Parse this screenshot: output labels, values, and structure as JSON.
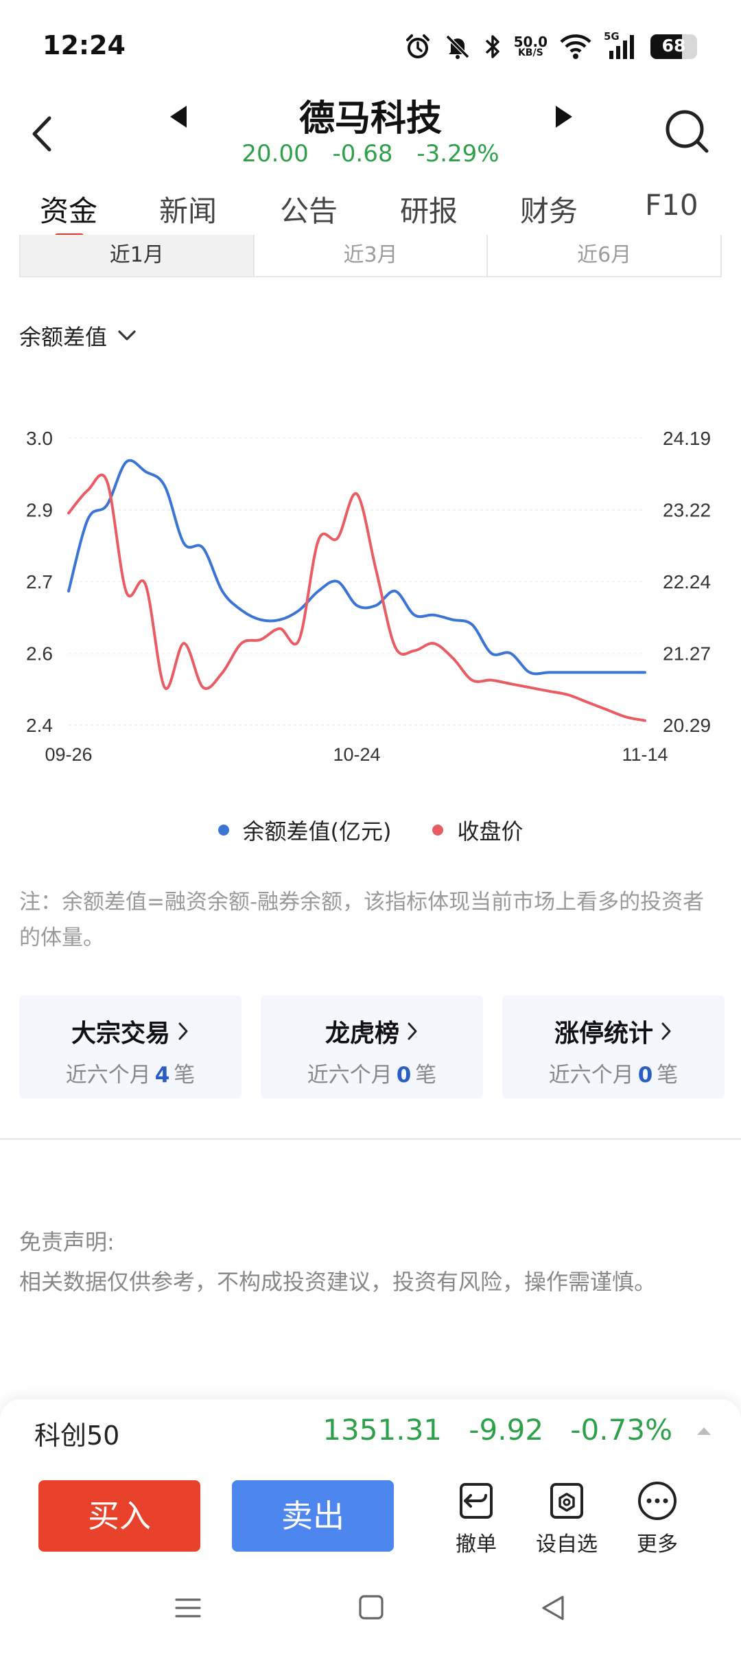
{
  "status_bar": {
    "time": "12:24",
    "net_speed_value": "50.0",
    "net_speed_unit": "KB/S",
    "network_type": "5G",
    "battery": "68",
    "icons": [
      "alarm-icon",
      "mute-icon",
      "bluetooth-icon",
      "wifi-icon",
      "signal-icon",
      "battery-icon"
    ]
  },
  "header": {
    "stock_name": "德马科技",
    "price": "20.00",
    "change": "-0.68",
    "change_pct": "-3.29%",
    "quote_color": "#2ea049"
  },
  "tabs": [
    {
      "label": "资金",
      "active": true
    },
    {
      "label": "新闻",
      "active": false
    },
    {
      "label": "公告",
      "active": false
    },
    {
      "label": "研报",
      "active": false
    },
    {
      "label": "财务",
      "active": false
    },
    {
      "label": "F10",
      "active": false
    }
  ],
  "period": [
    {
      "label": "近1月",
      "active": true
    },
    {
      "label": "近3月",
      "active": false
    },
    {
      "label": "近6月",
      "active": false
    }
  ],
  "metric_dropdown": {
    "selected": "余额差值"
  },
  "chart_data": {
    "type": "line",
    "x": [
      "09-26",
      "09-27",
      "09-30",
      "10-08",
      "10-09",
      "10-10",
      "10-11",
      "10-14",
      "10-15",
      "10-16",
      "10-17",
      "10-18",
      "10-21",
      "10-22",
      "10-23",
      "10-24",
      "10-25",
      "10-28",
      "10-29",
      "10-30",
      "10-31",
      "11-01",
      "11-04",
      "11-05",
      "11-06",
      "11-07",
      "11-08",
      "11-11",
      "11-12",
      "11-13",
      "11-14"
    ],
    "x_tick_labels": [
      "09-26",
      "10-24",
      "11-14"
    ],
    "left_axis": {
      "ticks": [
        "3.0",
        "2.9",
        "2.7",
        "2.6",
        "2.4"
      ],
      "ylim": [
        2.4,
        3.0
      ]
    },
    "right_axis": {
      "ticks": [
        "24.19",
        "23.22",
        "22.24",
        "21.27",
        "20.29"
      ],
      "ylim": [
        20.29,
        24.19
      ]
    },
    "series": [
      {
        "name": "余额差值(亿元)",
        "axis": "left",
        "color": "#3c74d6",
        "values": [
          2.68,
          2.83,
          2.86,
          2.95,
          2.93,
          2.9,
          2.78,
          2.77,
          2.68,
          2.64,
          2.62,
          2.62,
          2.64,
          2.68,
          2.7,
          2.65,
          2.65,
          2.68,
          2.63,
          2.63,
          2.62,
          2.61,
          2.55,
          2.55,
          2.51,
          2.51,
          2.51,
          2.51,
          2.51,
          2.51,
          2.51
        ]
      },
      {
        "name": "收盘价",
        "axis": "right",
        "color": "#e85d63",
        "values": [
          23.17,
          23.48,
          23.6,
          22.1,
          22.2,
          20.8,
          21.4,
          20.8,
          21.0,
          21.4,
          21.45,
          21.6,
          21.45,
          22.8,
          22.83,
          23.43,
          22.4,
          21.35,
          21.3,
          21.4,
          21.2,
          20.9,
          20.9,
          20.85,
          20.8,
          20.75,
          20.7,
          20.6,
          20.5,
          20.4,
          20.35
        ]
      }
    ],
    "legend": [
      "余额差值(亿元)",
      "收盘价"
    ],
    "legend_placement": "bottom-center",
    "grid": true
  },
  "note": "注：余额差值=融资余额-融券余额，该指标体现当前市场上看多的投资者的体量。",
  "cards": [
    {
      "title": "大宗交易",
      "prefix": "近六个月",
      "count": "4",
      "suffix": "笔"
    },
    {
      "title": "龙虎榜",
      "prefix": "近六个月",
      "count": "0",
      "suffix": "笔"
    },
    {
      "title": "涨停统计",
      "prefix": "近六个月",
      "count": "0",
      "suffix": "笔"
    }
  ],
  "disclaimer": {
    "title": "免责声明:",
    "body": "相关数据仅供参考，不构成投资建议，投资有风险，操作需谨慎。"
  },
  "index_bar": {
    "name": "科创50",
    "value": "1351.31",
    "change": "-9.92",
    "change_pct": "-0.73%"
  },
  "actions": {
    "buy": "买入",
    "sell": "卖出",
    "cancel": "撤单",
    "watchlist": "设自选",
    "more": "更多"
  }
}
